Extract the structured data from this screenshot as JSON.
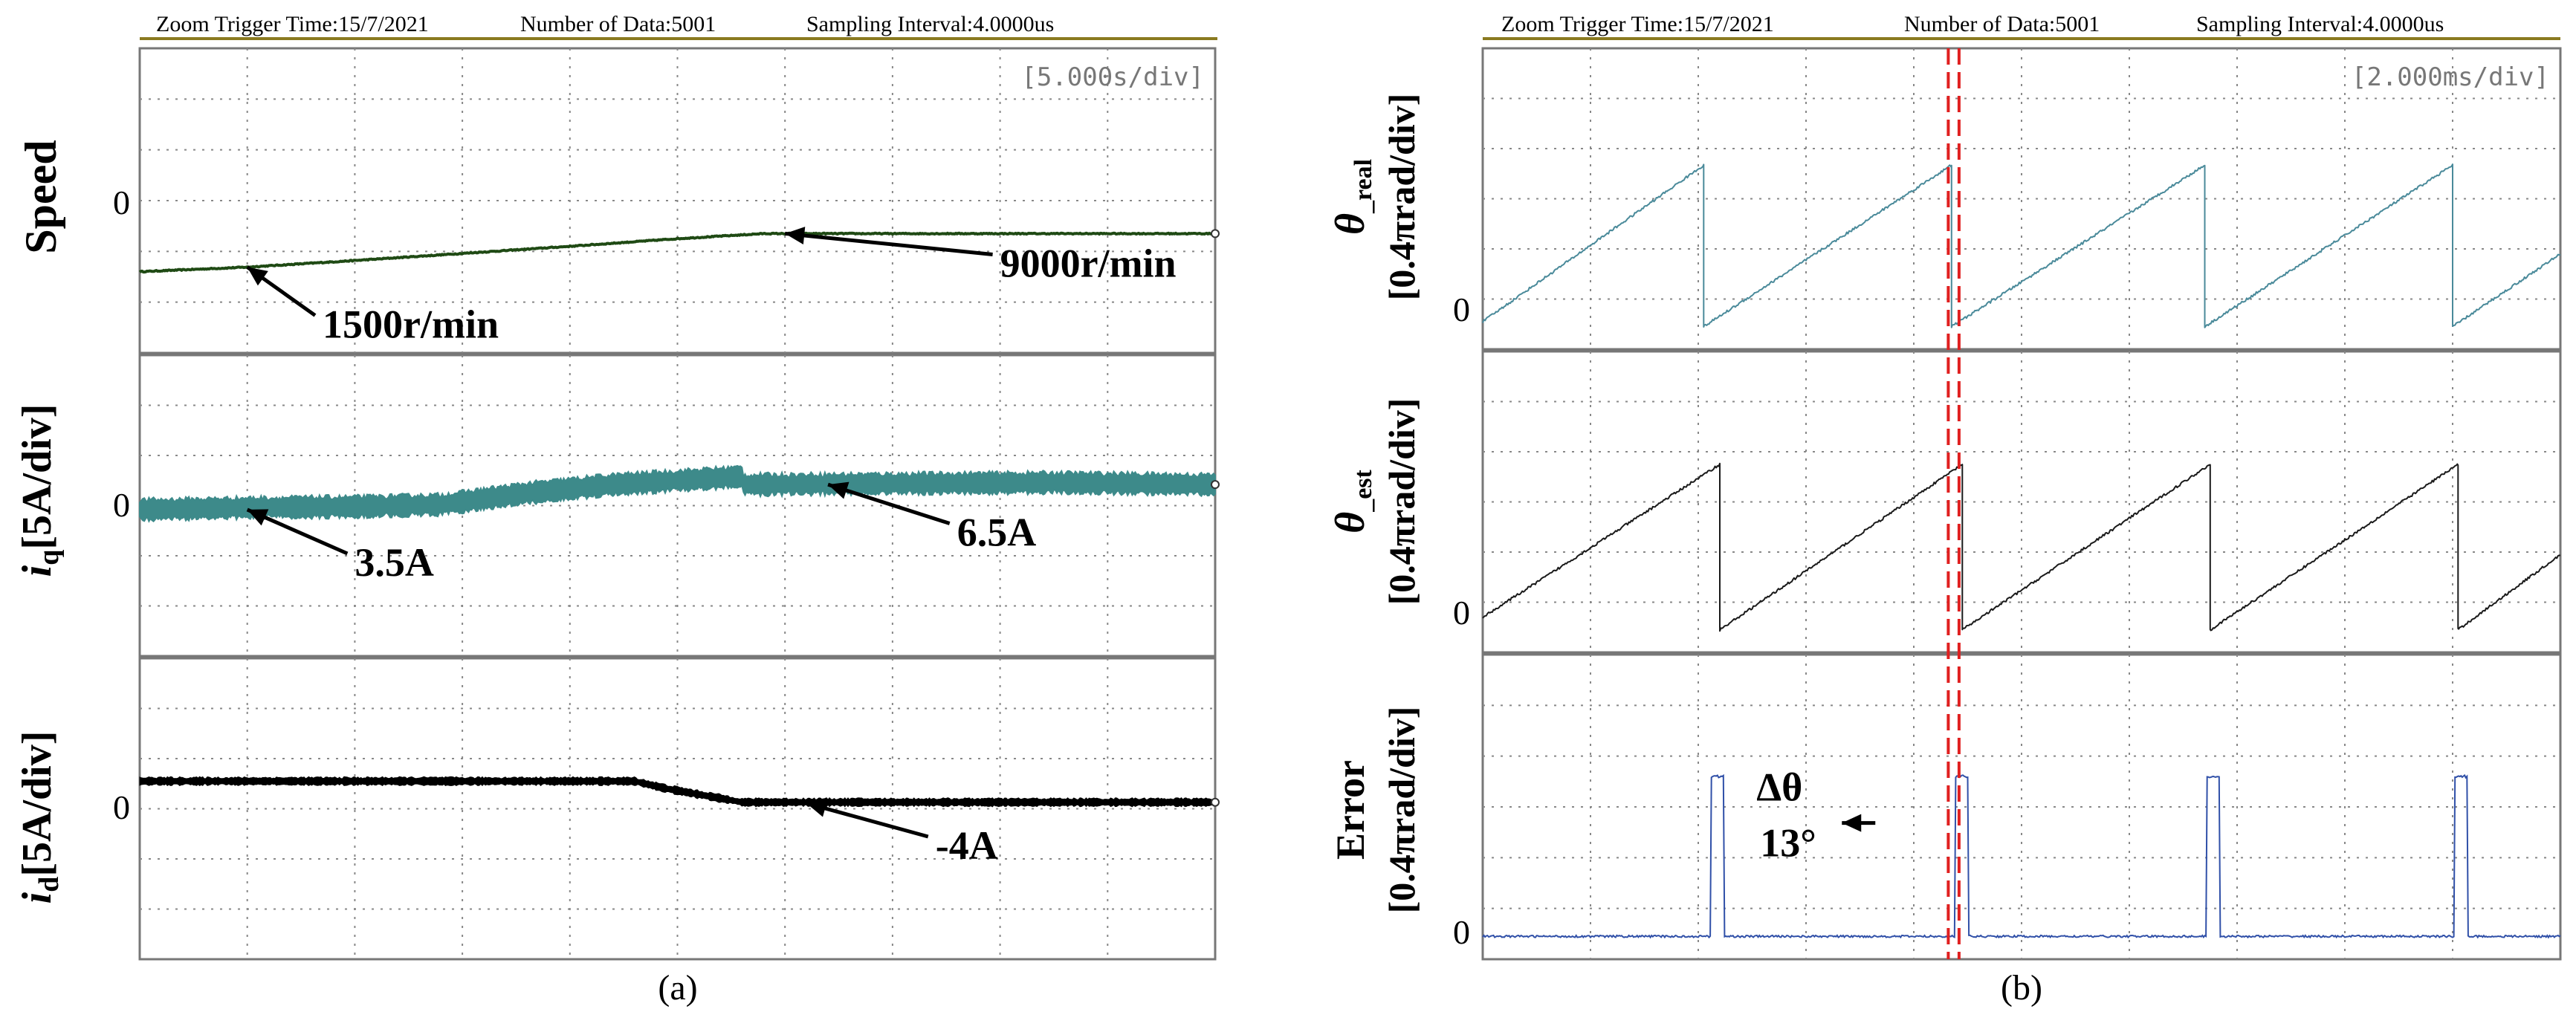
{
  "chart_data": [
    {
      "id": "a",
      "type": "line",
      "caption": "(a)",
      "header": {
        "trigger": "Zoom Trigger Time:15/7/2021",
        "count": "Number of Data:5001",
        "interval": "Sampling Interval:4.0000us"
      },
      "timebase": "[5.000s/div]",
      "grid": true,
      "x_divisions": 10,
      "panels": [
        {
          "key": "speed",
          "ylabel": "Speed",
          "zero_label": "0",
          "color": "#1f4a14",
          "y_divisions": 6,
          "zero_div": 4.4,
          "noise": 0.02,
          "thickness": 4,
          "series": [
            [
              0,
              0
            ],
            [
              1,
              0.09
            ],
            [
              2,
              0.22
            ],
            [
              3,
              0.36
            ],
            [
              4,
              0.5
            ],
            [
              5,
              0.65
            ],
            [
              5.8,
              0.75
            ],
            [
              10,
              0.75
            ]
          ],
          "annotations": [
            {
              "text": "1500r/min",
              "tip": [
                1.0,
                0.09
              ],
              "label": [
                1.7,
                -1.3
              ]
            },
            {
              "text": "9000r/min",
              "tip": [
                6.0,
                0.75
              ],
              "label": [
                8.0,
                -0.1
              ]
            }
          ]
        },
        {
          "key": "iq",
          "ylabel_main": "i",
          "ylabel_sub": "q",
          "ylabel_rest": "[5A/div]",
          "zero_label": "0",
          "color": "#3d8a8a",
          "y_divisions": 6,
          "zero_div": 3.2,
          "noise": 0.35,
          "thickness": 2,
          "series": [
            [
              0,
              0.12
            ],
            [
              1,
              0.16
            ],
            [
              2,
              0.18
            ],
            [
              2.8,
              0.22
            ],
            [
              3.6,
              0.45
            ],
            [
              4.4,
              0.62
            ],
            [
              5.6,
              0.78
            ],
            [
              5.6,
              0.62
            ],
            [
              7,
              0.64
            ],
            [
              8.5,
              0.66
            ],
            [
              10,
              0.62
            ]
          ],
          "annotations": [
            {
              "text": "3.5A",
              "tip": [
                1.0,
                0.12
              ],
              "label": [
                2.0,
                -1.2
              ]
            },
            {
              "text": "6.5A",
              "tip": [
                6.4,
                0.62
              ],
              "label": [
                7.6,
                -0.6
              ]
            }
          ]
        },
        {
          "key": "id",
          "ylabel_main": "i",
          "ylabel_sub": "d",
          "ylabel_rest": "[5A/div]",
          "zero_label": "0",
          "color": "#000000",
          "y_divisions": 6,
          "zero_div": 2.45,
          "noise": 0.12,
          "thickness": 3,
          "series": [
            [
              0,
              0
            ],
            [
              4.6,
              0
            ],
            [
              4.9,
              -0.15
            ],
            [
              5.5,
              -0.38
            ],
            [
              5.6,
              -0.42
            ],
            [
              10,
              -0.42
            ]
          ],
          "annotations": [
            {
              "text": "-4A",
              "tip": [
                6.2,
                -0.44
              ],
              "label": [
                7.4,
                -1.55
              ]
            }
          ]
        }
      ]
    },
    {
      "id": "b",
      "type": "line",
      "caption": "(b)",
      "header": {
        "trigger": "Zoom Trigger Time:15/7/2021",
        "count": "Number of Data:5001",
        "interval": "Sampling Interval:4.0000us"
      },
      "timebase": "[2.000ms/div]",
      "grid": true,
      "x_divisions": 10,
      "panels": [
        {
          "key": "theta_real",
          "ylabel_main": "θ",
          "ylabel_sub": "_real",
          "ylabel_unit": "[0.4πrad/div]",
          "zero_label": "0",
          "color": "#4a8a9a",
          "y_divisions": 6,
          "zero_div": 5.55,
          "noise": 0.05,
          "thickness": 2,
          "series": [
            [
              0,
              0.1
            ],
            [
              2.05,
              3.22
            ],
            [
              2.05,
              0
            ],
            [
              4.35,
              3.22
            ],
            [
              4.35,
              0
            ],
            [
              6.7,
              3.22
            ],
            [
              6.7,
              0
            ],
            [
              9.0,
              3.22
            ],
            [
              9.0,
              0
            ],
            [
              10,
              1.45
            ]
          ],
          "annotations": []
        },
        {
          "key": "theta_est",
          "ylabel_main": "θ",
          "ylabel_sub": "_est",
          "ylabel_unit": "[0.4πrad/div]",
          "zero_label": "0",
          "color": "#1a1a1a",
          "y_divisions": 6,
          "zero_div": 5.55,
          "noise": 0.05,
          "thickness": 2,
          "series": [
            [
              0,
              0.25
            ],
            [
              2.2,
              3.3
            ],
            [
              2.2,
              0
            ],
            [
              4.45,
              3.3
            ],
            [
              4.45,
              0
            ],
            [
              6.75,
              3.3
            ],
            [
              6.75,
              0
            ],
            [
              9.05,
              3.3
            ],
            [
              9.05,
              0
            ],
            [
              10,
              1.5
            ]
          ],
          "annotations": []
        },
        {
          "key": "error",
          "ylabel_main": "Error",
          "ylabel_unit": "[0.4πrad/div]",
          "zero_label": "0",
          "color": "#3050a8",
          "y_divisions": 6,
          "zero_div": 5.55,
          "noise": 0.04,
          "thickness": 2,
          "spikes": [
            2.12,
            4.38,
            6.72,
            9.02
          ],
          "spike_height": 3.15,
          "spike_width": 0.12,
          "series": [],
          "annotations": [
            {
              "text_main": "Δθ",
              "text_sub": "13°",
              "tip": [
                4.35,
                2.6
              ],
              "label": [
                3.85,
                2.6
              ]
            }
          ]
        }
      ],
      "markers": {
        "x": [
          4.32,
          4.42
        ],
        "color": "#e02020"
      }
    }
  ]
}
